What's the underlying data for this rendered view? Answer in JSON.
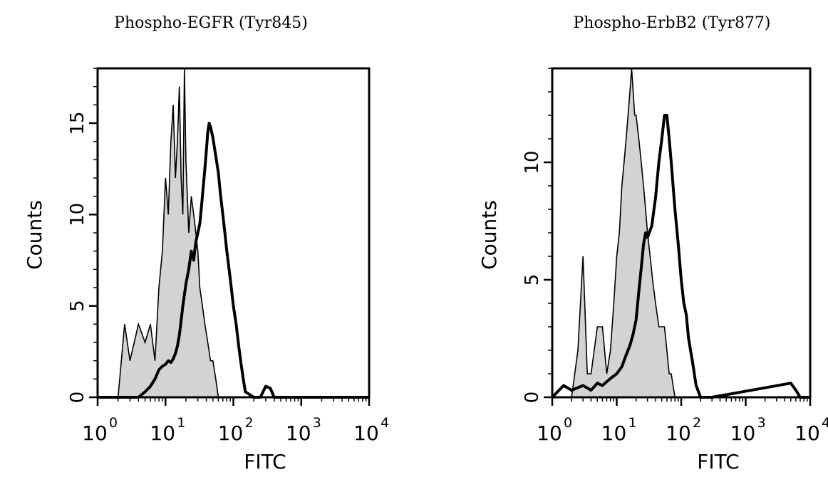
{
  "chart_data": [
    {
      "type": "histogram",
      "title": "Phospho-EGFR (Tyr845)",
      "xlabel": "FITC",
      "ylabel": "Counts",
      "x_scale": "log",
      "xlim": [
        1,
        10000
      ],
      "ylim": [
        0,
        18
      ],
      "x_ticks": [
        {
          "base": "10",
          "exp": "0"
        },
        {
          "base": "10",
          "exp": "1"
        },
        {
          "base": "10",
          "exp": "2"
        },
        {
          "base": "10",
          "exp": "3"
        },
        {
          "base": "10",
          "exp": "4"
        }
      ],
      "y_ticks": [
        "0",
        "5",
        "10",
        "15"
      ],
      "y_tick_values": [
        0,
        5,
        10,
        15
      ],
      "series": [
        {
          "style": "filled",
          "color": "#d3d3d3",
          "x": [
            1,
            1.5,
            2,
            2.5,
            3,
            4,
            5,
            6,
            7,
            8,
            9,
            10,
            11,
            12,
            13,
            14,
            15,
            16,
            17,
            18,
            19,
            20,
            21,
            22,
            24,
            26,
            28,
            30,
            32,
            35,
            38,
            42,
            46,
            50,
            55,
            60,
            70,
            100
          ],
          "y": [
            0,
            0,
            0,
            4,
            2,
            4,
            3,
            4,
            2,
            6,
            8,
            12,
            10,
            14,
            16,
            12,
            14,
            17,
            12,
            10,
            18,
            13,
            11,
            9,
            11,
            10,
            9,
            8,
            6,
            5,
            4,
            3,
            2,
            2,
            1,
            0,
            0,
            0
          ]
        },
        {
          "style": "outline",
          "color": "#000000",
          "x": [
            1,
            4,
            5,
            6,
            7,
            8,
            9,
            10,
            11,
            12,
            13,
            14,
            15,
            16,
            17,
            18,
            20,
            22,
            24,
            26,
            28,
            30,
            32,
            34,
            36,
            38,
            40,
            42,
            44,
            46,
            50,
            55,
            60,
            65,
            70,
            75,
            80,
            90,
            100,
            110,
            120,
            130,
            140,
            150,
            200,
            250,
            300,
            350,
            400,
            450,
            500,
            1000,
            10000
          ],
          "y": [
            0,
            0,
            0.3,
            0.6,
            1,
            1.5,
            1.7,
            1.8,
            2,
            1.9,
            2.1,
            2.4,
            2.8,
            3.4,
            4.2,
            5,
            6.2,
            7,
            8,
            7.5,
            8.5,
            9,
            9.5,
            10.5,
            11.5,
            12.5,
            13.5,
            14.5,
            15,
            14.8,
            14.2,
            13.2,
            12.3,
            11,
            10,
            9,
            8,
            6.5,
            5,
            4,
            2.8,
            1.8,
            1,
            0.3,
            0,
            0,
            0.6,
            0.5,
            0,
            0,
            0,
            0,
            0
          ]
        }
      ]
    },
    {
      "type": "histogram",
      "title": "Phospho-ErbB2 (Tyr877)",
      "xlabel": "FITC",
      "ylabel": "Counts",
      "x_scale": "log",
      "xlim": [
        1,
        10000
      ],
      "ylim": [
        0,
        14
      ],
      "x_ticks": [
        {
          "base": "10",
          "exp": "0"
        },
        {
          "base": "10",
          "exp": "1"
        },
        {
          "base": "10",
          "exp": "2"
        },
        {
          "base": "10",
          "exp": "3"
        },
        {
          "base": "10",
          "exp": "4"
        }
      ],
      "y_ticks": [
        "0",
        "5",
        "10"
      ],
      "y_tick_values": [
        0,
        5,
        10
      ],
      "series": [
        {
          "style": "filled",
          "color": "#d3d3d3",
          "x": [
            1,
            2,
            2.5,
            3,
            3.5,
            4,
            5,
            6,
            7,
            8,
            9,
            10,
            11,
            12,
            13,
            14,
            15,
            16,
            17,
            18,
            19,
            20,
            22,
            24,
            26,
            28,
            30,
            33,
            36,
            40,
            45,
            50,
            55,
            60,
            65,
            70,
            80,
            100
          ],
          "y": [
            0,
            0,
            2,
            6,
            1,
            1,
            3,
            3,
            1,
            2,
            4,
            6,
            7,
            9,
            10,
            11,
            12,
            13,
            14,
            13,
            12,
            12,
            11,
            10,
            9,
            8,
            7,
            6,
            5,
            4,
            3,
            3,
            3,
            2,
            1,
            1,
            0,
            0
          ]
        },
        {
          "style": "outline",
          "color": "#000000",
          "x": [
            1,
            1.5,
            2,
            3,
            4,
            5,
            6,
            8,
            10,
            12,
            14,
            16,
            18,
            20,
            22,
            24,
            26,
            28,
            30,
            35,
            40,
            45,
            50,
            55,
            60,
            65,
            70,
            80,
            90,
            100,
            110,
            120,
            130,
            150,
            170,
            200,
            250,
            300,
            5000,
            6000,
            7000,
            10000
          ],
          "y": [
            0,
            0.5,
            0.3,
            0.5,
            0.3,
            0.6,
            0.5,
            0.8,
            1,
            1.3,
            1.8,
            2.2,
            2.7,
            3.3,
            4.5,
            5.5,
            6.5,
            7,
            6.8,
            7.3,
            8.5,
            10,
            11,
            12,
            12,
            11,
            10,
            8,
            6.5,
            5,
            4,
            3.5,
            2.5,
            1.5,
            0.5,
            0,
            0,
            0,
            0.6,
            0.3,
            0,
            0
          ]
        }
      ]
    }
  ]
}
